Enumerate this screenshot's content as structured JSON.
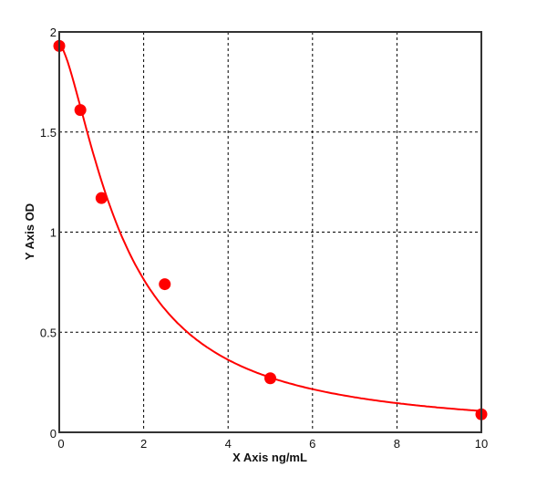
{
  "chart_data": {
    "type": "scatter",
    "title": "",
    "xlabel": "X Axis ng/mL",
    "ylabel": "Y Axis OD",
    "xlim": [
      0,
      10
    ],
    "ylim": [
      0,
      2
    ],
    "xticks": [
      "0",
      "2",
      "4",
      "6",
      "8",
      "10"
    ],
    "yticks": [
      "0",
      "0.5",
      "1",
      "1.5",
      "2"
    ],
    "grid": true,
    "fit_curve": true,
    "color": "#ff0000",
    "points": [
      {
        "x": 0,
        "y": 1.93
      },
      {
        "x": 0.5,
        "y": 1.61
      },
      {
        "x": 1,
        "y": 1.17
      },
      {
        "x": 2.5,
        "y": 0.74
      },
      {
        "x": 5,
        "y": 0.27
      },
      {
        "x": 10,
        "y": 0.09
      }
    ]
  }
}
